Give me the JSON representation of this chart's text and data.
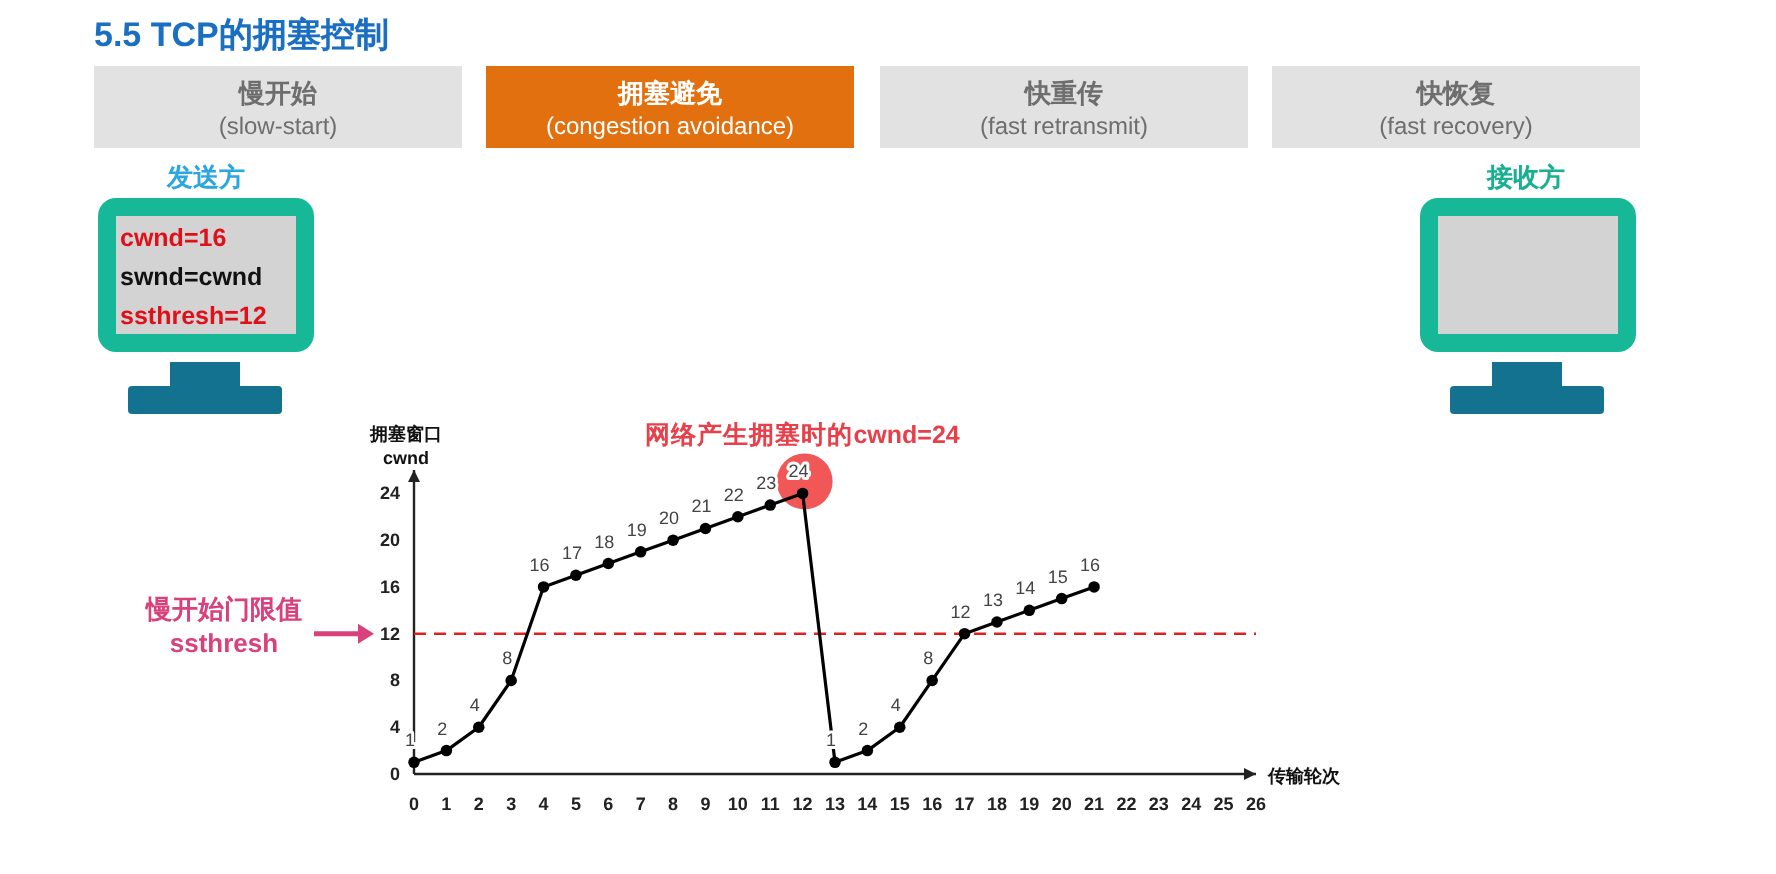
{
  "chart_data": {
    "type": "line",
    "title": "5.5 TCP的拥塞控制",
    "xlabel": "传输轮次",
    "ylabel": "拥塞窗口\ncwnd",
    "x": [
      0,
      1,
      2,
      3,
      4,
      5,
      6,
      7,
      8,
      9,
      10,
      11,
      12,
      13,
      14,
      15,
      16,
      17,
      18,
      19,
      20,
      21
    ],
    "series": [
      {
        "color": "#000000",
        "values": [
          1,
          2,
          4,
          8,
          16,
          17,
          18,
          19,
          20,
          21,
          22,
          23,
          24,
          1,
          2,
          4,
          8,
          12,
          13,
          14,
          15,
          16
        ]
      }
    ],
    "xlim": [
      0,
      26
    ],
    "xticks": [
      0,
      1,
      2,
      3,
      4,
      5,
      6,
      7,
      8,
      9,
      10,
      11,
      12,
      13,
      14,
      15,
      16,
      17,
      18,
      19,
      20,
      21,
      22,
      23,
      24,
      25,
      26
    ],
    "ylim": [
      0,
      26
    ],
    "yticks": [
      0,
      4,
      8,
      12,
      16,
      20,
      24
    ],
    "marker": "circle",
    "data_labels": true,
    "ref_lines": [
      {
        "axis": "y",
        "value": 12,
        "color": "#e02020",
        "line_style": "dashed"
      }
    ],
    "annotations": [
      "慢开始\n(slow-start)",
      "拥塞避免\n(congestion avoidance)",
      "快重传\n(fast retransmit)",
      "快恢复\n(fast recovery)",
      "发送方",
      "cwnd=16",
      "swnd=cwnd",
      "ssthresh=12",
      "接收方",
      {
        "text": "网络产生拥塞时的cwnd=24",
        "x": 12,
        "y": 24
      },
      "慢开始门限值\nssthresh"
    ]
  }
}
